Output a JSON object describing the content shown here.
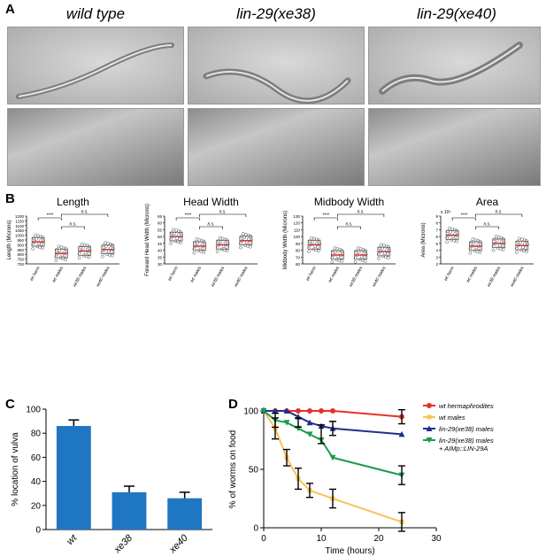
{
  "panel_a": {
    "letter": "A",
    "strains": [
      "wild type",
      "lin-29(xe38)",
      "lin-29(xe40)"
    ]
  },
  "panel_b": {
    "letter": "B",
    "categories": [
      "wt herm",
      "wt males",
      "xe38 males",
      "xe40 males"
    ],
    "plots": [
      {
        "title": "Length",
        "ylabel": "Length (Microns)",
        "ylim": [
          700,
          1200
        ],
        "ticks": [
          "700",
          "750",
          "800",
          "850",
          "900",
          "950",
          "1000",
          "1050",
          "1100",
          "1150",
          "1200"
        ],
        "means": [
          930,
          810,
          835,
          850
        ],
        "sig_labels": [
          "****",
          "n.s.",
          "n.s."
        ]
      },
      {
        "title": "Head Width",
        "ylabel": "Forward Head Width (Microns)",
        "ylim": [
          30,
          65
        ],
        "ticks": [
          "30",
          "35",
          "40",
          "45",
          "50",
          "55",
          "60",
          "65"
        ],
        "means": [
          50,
          43,
          44,
          47
        ],
        "sig_labels": [
          "****",
          "n.s.",
          "n.s."
        ]
      },
      {
        "title": "Midbody Width",
        "ylabel": "Midbody Width (Microns)",
        "ylim": [
          60,
          130
        ],
        "ticks": [
          "60",
          "70",
          "80",
          "90",
          "100",
          "110",
          "120",
          "130"
        ],
        "means": [
          88,
          73,
          73,
          78
        ],
        "sig_labels": [
          "****",
          "n.s.",
          "n.s."
        ]
      },
      {
        "title": "Area",
        "ylabel": "Area (Microns)",
        "exponent": "x 10⁵",
        "ylim": [
          2,
          9
        ],
        "ticks": [
          "2",
          "3",
          "4",
          "5",
          "6",
          "7",
          "8",
          "9"
        ],
        "means": [
          6.2,
          4.6,
          5.0,
          4.7
        ],
        "sig_labels": [
          "****",
          "n.s.",
          "n.s."
        ]
      }
    ]
  },
  "chart_data": [
    {
      "panel": "C",
      "type": "bar",
      "categories": [
        "wt",
        "xe38",
        "xe40"
      ],
      "values": [
        86,
        31,
        26
      ],
      "errors": [
        5,
        5,
        5
      ],
      "ylabel": "% location of vulva",
      "ylim": [
        0,
        100
      ],
      "yticks": [
        "0",
        "20",
        "40",
        "60",
        "80",
        "100"
      ],
      "color": "#1f77c4"
    },
    {
      "panel": "D",
      "type": "line",
      "xlabel": "Time (hours)",
      "ylabel": "% of worms on food",
      "xlim": [
        0,
        30
      ],
      "ylim": [
        0,
        100
      ],
      "xticks": [
        "0",
        "10",
        "20",
        "30"
      ],
      "yticks": [
        "0",
        "50",
        "100"
      ],
      "series": [
        {
          "name": "wt hermaphrodites",
          "color": "#e8302a",
          "marker": "circle",
          "x": [
            0,
            2,
            4,
            6,
            8,
            10,
            12,
            24
          ],
          "y": [
            100,
            100,
            100,
            100,
            100,
            100,
            100,
            95
          ]
        },
        {
          "name": "wt males",
          "color": "#f6c45a",
          "marker": "square",
          "x": [
            0,
            2,
            4,
            6,
            8,
            12,
            24
          ],
          "y": [
            100,
            85,
            60,
            42,
            32,
            25,
            5
          ]
        },
        {
          "name": "lin-29(xe38) males",
          "color": "#1f2f8c",
          "marker": "triangle-up",
          "x": [
            0,
            2,
            4,
            6,
            8,
            10,
            12,
            24
          ],
          "y": [
            100,
            100,
            100,
            95,
            90,
            87,
            85,
            80
          ]
        },
        {
          "name": "lin-29(xe38) males",
          "extra": "+ AIMp::LIN-29A",
          "color": "#1e9a4a",
          "marker": "triangle-down",
          "x": [
            0,
            2,
            4,
            6,
            8,
            10,
            12,
            24
          ],
          "y": [
            100,
            92,
            90,
            85,
            80,
            75,
            60,
            45
          ]
        }
      ]
    }
  ]
}
